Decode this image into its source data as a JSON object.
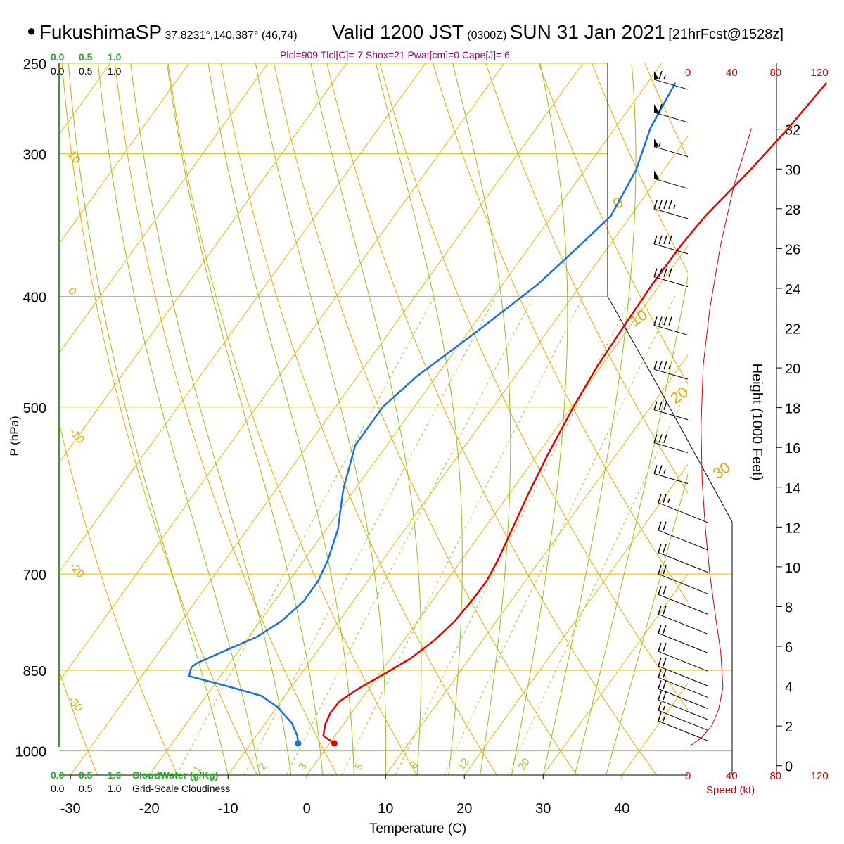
{
  "header": {
    "station": "FukushimaSP",
    "coords": "37.8231°,140.387° (46,74)",
    "valid": "Valid 1200 JST",
    "utc": "(0300Z)",
    "date": "SUN 31 Jan 2021",
    "forecast": "[21hrFcst@1528z]",
    "indices": "Plcl=909 Tlcl[C]=-7 Shox=21 Pwat[cm]=0 Cape[J]= 6"
  },
  "colors": {
    "temperature": "#e60000",
    "dewpoint": "#1a6fe0",
    "isobar_isotherm": "#e6b800",
    "dry_adiabat": "#e6a800",
    "moist_adiabat": "#8fc21a",
    "mixing_ratio": "#9acd32",
    "cloud": "#22aa22",
    "wind_profile": "#cc0000"
  },
  "labels": {
    "x_axis_title": "Temperature (C)",
    "y_axis_title": "P (hPa)",
    "height_title": "Height (1000 Feet)",
    "speed_title": "Speed (kt)",
    "cloudwater_title": "CloudWater (g/Kg)",
    "cloudiness_title": "Grid-Scale Cloudiness",
    "cloudwater_ticks": [
      "0.0",
      "0.5",
      "1.0"
    ],
    "cloudiness_ticks": [
      "0.0",
      "0.5",
      "1.0"
    ],
    "top_cloudwater_ticks": [
      "0.0",
      "0.5",
      "1.0"
    ],
    "top_cloudiness_ticks": [
      "0.0",
      "0.5",
      "1.0"
    ]
  },
  "chart_data": {
    "type": "line",
    "title": "FukushimaSP Valid 1200 JST SUN 31 Jan 2021",
    "xlabel": "Temperature (C)",
    "ylabel": "P (hPa)",
    "x_ticks": [
      -30,
      -20,
      -10,
      0,
      10,
      20,
      30,
      40
    ],
    "y_ticks": [
      250,
      300,
      400,
      500,
      700,
      850,
      1000
    ],
    "xlim": [
      -35,
      46
    ],
    "ylim": [
      1050,
      250
    ],
    "y_scale": "log",
    "height_ticks": [
      0,
      2,
      4,
      6,
      8,
      10,
      12,
      14,
      16,
      18,
      20,
      22,
      24,
      26,
      28,
      30,
      32
    ],
    "speed_ticks": [
      0,
      40,
      80,
      120
    ],
    "dry_adiabat_labels": [
      "10",
      "0",
      "-10",
      "-20",
      "-30"
    ],
    "moist_adiabat_labels": [
      "0",
      "10",
      "20",
      "30"
    ],
    "mixing_ratio_labels": [
      "1",
      "2",
      "3",
      "5",
      "8",
      "12",
      "20"
    ],
    "series": [
      {
        "name": "Temperature",
        "points": [
          [
            0.6,
            985
          ],
          [
            -1.5,
            970
          ],
          [
            -2.3,
            948
          ],
          [
            -2.7,
            925
          ],
          [
            -2.6,
            905
          ],
          [
            -1.2,
            880
          ],
          [
            0.7,
            855
          ],
          [
            2.5,
            830
          ],
          [
            3.9,
            800
          ],
          [
            4.7,
            770
          ],
          [
            5.0,
            740
          ],
          [
            5.1,
            710
          ],
          [
            4.6,
            680
          ],
          [
            3.6,
            640
          ],
          [
            2.4,
            595
          ],
          [
            1.3,
            550
          ],
          [
            0.2,
            500
          ],
          [
            -0.5,
            460
          ],
          [
            -0.8,
            420
          ],
          [
            -1.0,
            390
          ],
          [
            -0.9,
            360
          ],
          [
            -0.5,
            340
          ],
          [
            1.0,
            310
          ],
          [
            2.0,
            285
          ],
          [
            2.7,
            260
          ]
        ]
      },
      {
        "name": "Dewpoint",
        "points": [
          [
            -4.0,
            985
          ],
          [
            -4.8,
            970
          ],
          [
            -6.7,
            945
          ],
          [
            -10.0,
            915
          ],
          [
            -13.0,
            895
          ],
          [
            -17.5,
            880
          ],
          [
            -24.0,
            860
          ],
          [
            -24.5,
            845
          ],
          [
            -24.2,
            838
          ],
          [
            -21.5,
            815
          ],
          [
            -19.0,
            795
          ],
          [
            -17.3,
            770
          ],
          [
            -16.3,
            740
          ],
          [
            -16.3,
            710
          ],
          [
            -17.0,
            680
          ],
          [
            -18.5,
            640
          ],
          [
            -21.5,
            590
          ],
          [
            -24.0,
            540
          ],
          [
            -24.0,
            500
          ],
          [
            -22.5,
            470
          ],
          [
            -19.0,
            430
          ],
          [
            -15.5,
            390
          ],
          [
            -14.0,
            365
          ],
          [
            -12.5,
            340
          ],
          [
            -13.5,
            310
          ],
          [
            -15.5,
            285
          ],
          [
            -16.5,
            260
          ]
        ]
      },
      {
        "name": "Wind speed",
        "points": [
          [
            2,
            990
          ],
          [
            12,
            975
          ],
          [
            22,
            950
          ],
          [
            28,
            920
          ],
          [
            32,
            880
          ],
          [
            30,
            820
          ],
          [
            25,
            760
          ],
          [
            20,
            700
          ],
          [
            16,
            640
          ],
          [
            13,
            580
          ],
          [
            12,
            520
          ],
          [
            14,
            460
          ],
          [
            20,
            410
          ],
          [
            30,
            360
          ],
          [
            42,
            320
          ],
          [
            58,
            285
          ]
        ]
      }
    ],
    "wind_barbs": [
      {
        "p": 262,
        "speed": 65
      },
      {
        "p": 280,
        "speed": 60
      },
      {
        "p": 300,
        "speed": 55
      },
      {
        "p": 320,
        "speed": 50
      },
      {
        "p": 340,
        "speed": 45
      },
      {
        "p": 365,
        "speed": 40
      },
      {
        "p": 390,
        "speed": 40
      },
      {
        "p": 430,
        "speed": 40
      },
      {
        "p": 470,
        "speed": 35
      },
      {
        "p": 510,
        "speed": 30
      },
      {
        "p": 545,
        "speed": 30
      },
      {
        "p": 580,
        "speed": 25
      },
      {
        "p": 615,
        "speed": 25
      },
      {
        "p": 650,
        "speed": 20
      },
      {
        "p": 680,
        "speed": 20
      },
      {
        "p": 710,
        "speed": 20
      },
      {
        "p": 740,
        "speed": 20
      },
      {
        "p": 770,
        "speed": 20
      },
      {
        "p": 800,
        "speed": 20
      },
      {
        "p": 830,
        "speed": 20
      },
      {
        "p": 855,
        "speed": 20
      },
      {
        "p": 875,
        "speed": 20
      },
      {
        "p": 895,
        "speed": 20
      },
      {
        "p": 915,
        "speed": 20
      },
      {
        "p": 935,
        "speed": 15
      },
      {
        "p": 955,
        "speed": 15
      }
    ]
  }
}
